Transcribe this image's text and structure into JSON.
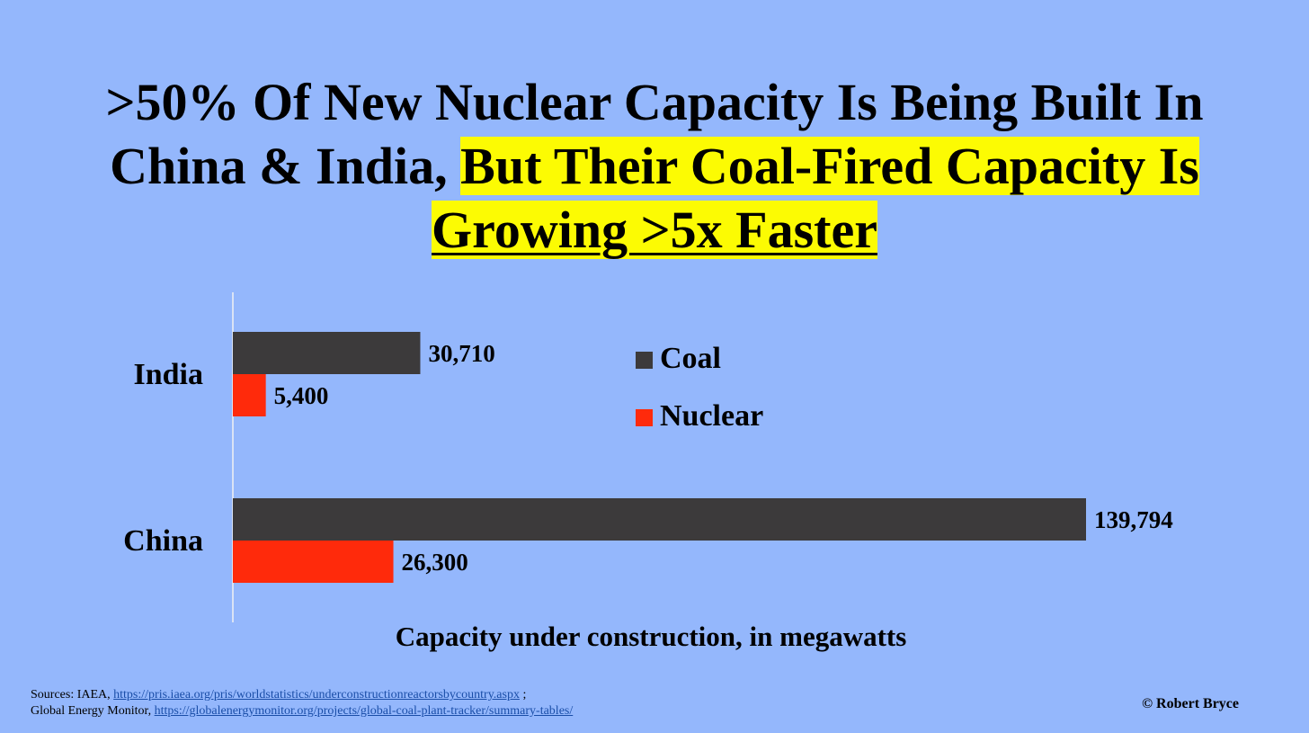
{
  "title": {
    "line1": ">50% Of New Nuclear Capacity Is Being Built In",
    "line2_plain": "China & India, ",
    "line2_highlight": "But Their Coal-Fired Capacity Is",
    "line3_highlight": "Growing >5x Faster"
  },
  "chart_data": {
    "type": "bar",
    "orientation": "horizontal",
    "categories": [
      "India",
      "China"
    ],
    "series": [
      {
        "name": "Coal",
        "values": [
          30710,
          139794
        ],
        "labels": [
          "30,710",
          "139,794"
        ],
        "color": "#3c3a3b"
      },
      {
        "name": "Nuclear",
        "values": [
          5400,
          26300
        ],
        "labels": [
          "5,400",
          "26,300"
        ],
        "color": "#ff2a0b"
      }
    ],
    "xlabel": "Capacity under construction, in megawatts",
    "xlim": [
      0,
      140000
    ],
    "grid": false,
    "legend_position": "right"
  },
  "sources": {
    "line1_prefix": "Sources: IAEA, ",
    "line1_link": "https://pris.iaea.org/pris/worldstatistics/underconstructionreactorsbycountry.aspx",
    "line1_suffix": " ;",
    "line2_prefix": "Global Energy Monitor, ",
    "line2_link": "https://globalenergymonitor.org/projects/global-coal-plant-tracker/summary-tables/"
  },
  "credit": "© Robert Bryce"
}
